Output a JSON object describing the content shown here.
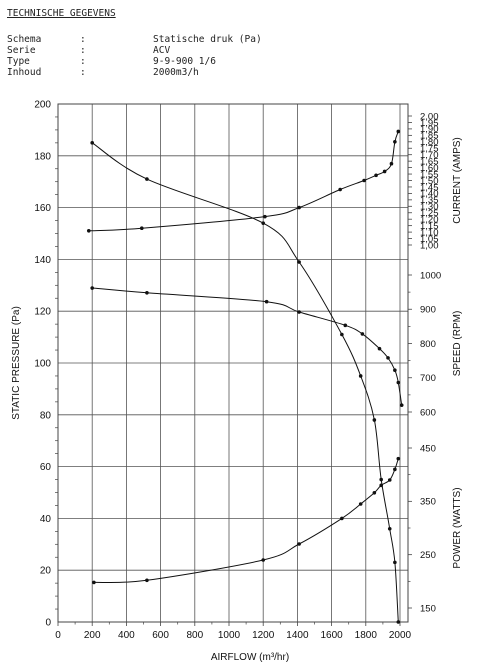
{
  "header": {
    "title": "TECHNISCHE GEGEVENS",
    "specs": [
      {
        "label": "Schema",
        "value": "Statische druk (Pa)"
      },
      {
        "label": "Serie",
        "value": "ACV"
      },
      {
        "label": "Type",
        "value": "9-9-900 1/6"
      },
      {
        "label": "Inhoud",
        "value": "2000m3/h"
      }
    ]
  },
  "chart_data": {
    "type": "line",
    "title": "",
    "xlabel": "AIRFLOW (m³/hr)",
    "ylabel": "STATIC PRESSURE (Pa)",
    "xlim": [
      0,
      2100
    ],
    "ylim": [
      0,
      200
    ],
    "grid": true,
    "x_ticks": [
      "0",
      "200",
      "400",
      "600",
      "800",
      "1000",
      "1200",
      "1400",
      "1600",
      "1800",
      "2000"
    ],
    "y_ticks": [
      "0",
      "20",
      "40",
      "60",
      "80",
      "100",
      "120",
      "140",
      "160",
      "180",
      "200"
    ],
    "right_axes": [
      {
        "name": "CURRENT (AMPS)",
        "range": [
          1.0,
          2.0
        ],
        "ticks": [
          "1,00",
          "1,05",
          "1,10",
          "1,15",
          "1,20",
          "1,25",
          "1,30",
          "1,35",
          "1,40",
          "1,45",
          "1,50",
          "1,55",
          "1,60",
          "1,65",
          "1,70",
          "1,75",
          "1,80",
          "1,85",
          "1,90",
          "1,95",
          "2,00"
        ]
      },
      {
        "name": "SPEED (RPM)",
        "range": [
          600,
          1000
        ],
        "ticks": [
          "600",
          "700",
          "800",
          "900",
          "1000"
        ]
      },
      {
        "name": "POWER (WATTS)",
        "range": [
          150,
          450
        ],
        "ticks": [
          "150",
          "250",
          "350",
          "450"
        ]
      }
    ],
    "series": [
      {
        "axis": "STATIC PRESSURE (Pa)",
        "x": [
          200,
          520,
          1200,
          1410,
          1660,
          1770,
          1850,
          1890,
          1940,
          1970,
          1990
        ],
        "y": [
          185,
          171,
          154,
          139,
          111,
          95,
          78,
          55,
          36,
          23,
          0
        ]
      },
      {
        "axis": "CURRENT (AMPS)",
        "x": [
          180,
          490,
          1210,
          1410,
          1650,
          1790,
          1860,
          1910,
          1950,
          1970,
          1990
        ],
        "y": [
          1.11,
          1.13,
          1.22,
          1.29,
          1.43,
          1.5,
          1.54,
          1.57,
          1.63,
          1.8,
          1.88
        ]
      },
      {
        "axis": "SPEED (RPM)",
        "x": [
          200,
          520,
          1220,
          1410,
          1680,
          1780,
          1880,
          1930,
          1970,
          1990,
          2010
        ],
        "y": [
          962,
          948,
          922,
          892,
          853,
          828,
          785,
          758,
          722,
          686,
          620
        ]
      },
      {
        "axis": "POWER (WATTS)",
        "x": [
          210,
          520,
          1200,
          1410,
          1660,
          1770,
          1850,
          1890,
          1940,
          1970,
          1990
        ],
        "y": [
          198,
          202,
          240,
          270,
          318,
          345,
          366,
          380,
          390,
          410,
          430
        ]
      }
    ]
  }
}
